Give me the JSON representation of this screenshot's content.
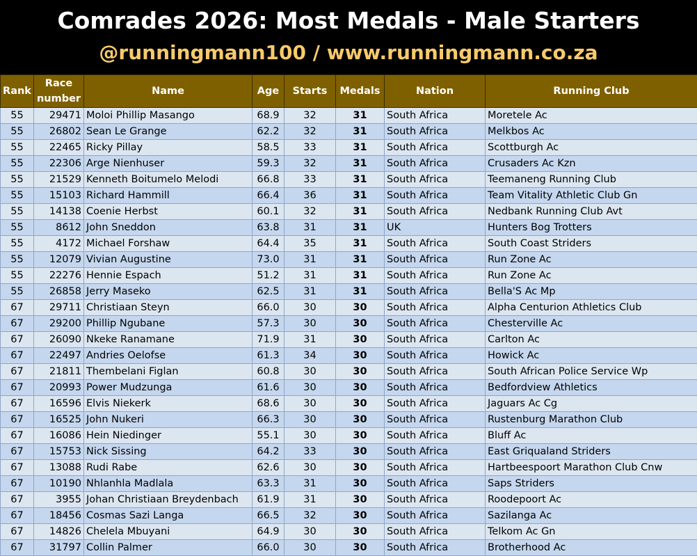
{
  "header": {
    "title": "Comrades 2026: Most Medals - Male Starters",
    "subtitle": "@runningmann100 / www.runningmann.co.za"
  },
  "table": {
    "columns": [
      "Rank",
      "Race number",
      "Name",
      "Age",
      "Starts",
      "Medals",
      "Nation",
      "Running Club"
    ],
    "rows": [
      [
        "55",
        "29471",
        "Moloi Phillip Masango",
        "68.9",
        "32",
        "31",
        "South Africa",
        "Moretele Ac"
      ],
      [
        "55",
        "26802",
        "Sean Le Grange",
        "62.2",
        "32",
        "31",
        "South Africa",
        "Melkbos Ac"
      ],
      [
        "55",
        "22465",
        "Ricky Pillay",
        "58.5",
        "33",
        "31",
        "South Africa",
        "Scottburgh Ac"
      ],
      [
        "55",
        "22306",
        "Arge Nienhuser",
        "59.3",
        "32",
        "31",
        "South Africa",
        "Crusaders Ac Kzn"
      ],
      [
        "55",
        "21529",
        "Kenneth Boitumelo Melodi",
        "66.8",
        "33",
        "31",
        "South Africa",
        "Teemaneng Running Club"
      ],
      [
        "55",
        "15103",
        "Richard Hammill",
        "66.4",
        "36",
        "31",
        "South Africa",
        "Team Vitality Athletic Club Gn"
      ],
      [
        "55",
        "14138",
        "Coenie Herbst",
        "60.1",
        "32",
        "31",
        "South Africa",
        "Nedbank Running Club Avt"
      ],
      [
        "55",
        "8612",
        "John Sneddon",
        "63.8",
        "31",
        "31",
        "UK",
        "Hunters Bog Trotters"
      ],
      [
        "55",
        "4172",
        "Michael Forshaw",
        "64.4",
        "35",
        "31",
        "South Africa",
        "South Coast Striders"
      ],
      [
        "55",
        "12079",
        "Vivian Augustine",
        "73.0",
        "31",
        "31",
        "South Africa",
        "Run Zone Ac"
      ],
      [
        "55",
        "22276",
        "Hennie Espach",
        "51.2",
        "31",
        "31",
        "South Africa",
        "Run Zone Ac"
      ],
      [
        "55",
        "26858",
        "Jerry Maseko",
        "62.5",
        "31",
        "31",
        "South Africa",
        "Bella'S Ac Mp"
      ],
      [
        "67",
        "29711",
        "Christiaan Steyn",
        "66.0",
        "30",
        "30",
        "South Africa",
        "Alpha Centurion Athletics Club"
      ],
      [
        "67",
        "29200",
        "Phillip Ngubane",
        "57.3",
        "30",
        "30",
        "South Africa",
        "Chesterville Ac"
      ],
      [
        "67",
        "26090",
        "Nkeke Ranamane",
        "71.9",
        "31",
        "30",
        "South Africa",
        "Carlton Ac"
      ],
      [
        "67",
        "22497",
        "Andries Oelofse",
        "61.3",
        "34",
        "30",
        "South Africa",
        "Howick Ac"
      ],
      [
        "67",
        "21811",
        "Thembelani Figlan",
        "60.8",
        "30",
        "30",
        "South Africa",
        "South African Police Service Wp"
      ],
      [
        "67",
        "20993",
        "Power Mudzunga",
        "61.6",
        "30",
        "30",
        "South Africa",
        "Bedfordview Athletics"
      ],
      [
        "67",
        "16596",
        "Elvis Niekerk",
        "68.6",
        "30",
        "30",
        "South Africa",
        "Jaguars Ac Cg"
      ],
      [
        "67",
        "16525",
        "John Nukeri",
        "66.3",
        "30",
        "30",
        "South Africa",
        "Rustenburg Marathon Club"
      ],
      [
        "67",
        "16086",
        "Hein Niedinger",
        "55.1",
        "30",
        "30",
        "South Africa",
        "Bluff Ac"
      ],
      [
        "67",
        "15753",
        "Nick Sissing",
        "64.2",
        "33",
        "30",
        "South Africa",
        "East Griqualand Striders"
      ],
      [
        "67",
        "13088",
        "Rudi Rabe",
        "62.6",
        "30",
        "30",
        "South Africa",
        "Hartbeespoort Marathon Club Cnw"
      ],
      [
        "67",
        "10190",
        "Nhlanhla Madlala",
        "63.3",
        "31",
        "30",
        "South Africa",
        "Saps Striders"
      ],
      [
        "67",
        "3955",
        "Johan Christiaan Breydenbach",
        "61.9",
        "31",
        "30",
        "South Africa",
        "Roodepoort Ac"
      ],
      [
        "67",
        "18456",
        "Cosmas Sazi Langa",
        "66.5",
        "32",
        "30",
        "South Africa",
        "Sazilanga Ac"
      ],
      [
        "67",
        "14826",
        "Chelela Mbuyani",
        "64.9",
        "30",
        "30",
        "South Africa",
        "Telkom Ac Gn"
      ],
      [
        "67",
        "31797",
        "Collin Palmer",
        "66.0",
        "30",
        "30",
        "South Africa",
        "Brotherhood Ac"
      ]
    ]
  }
}
